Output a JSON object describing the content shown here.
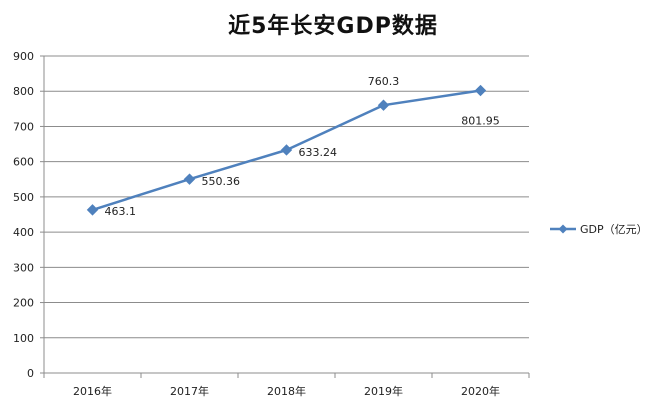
{
  "chart_data": {
    "type": "line",
    "title": "近5年长安GDP数据",
    "xlabel": "",
    "ylabel": "",
    "categories": [
      "2016年",
      "2017年",
      "2018年",
      "2019年",
      "2020年"
    ],
    "series": [
      {
        "name": "GDP（亿元）",
        "values": [
          463.1,
          550.36,
          633.24,
          760.3,
          801.95
        ],
        "labels": [
          "463.1",
          "550.36",
          "633.24",
          "760.3",
          "801.95"
        ],
        "color": "#4f81bd"
      }
    ],
    "ylim": [
      0,
      900
    ],
    "yticks": [
      0,
      100,
      200,
      300,
      400,
      500,
      600,
      700,
      800,
      900
    ],
    "grid": true,
    "legend": "right"
  }
}
